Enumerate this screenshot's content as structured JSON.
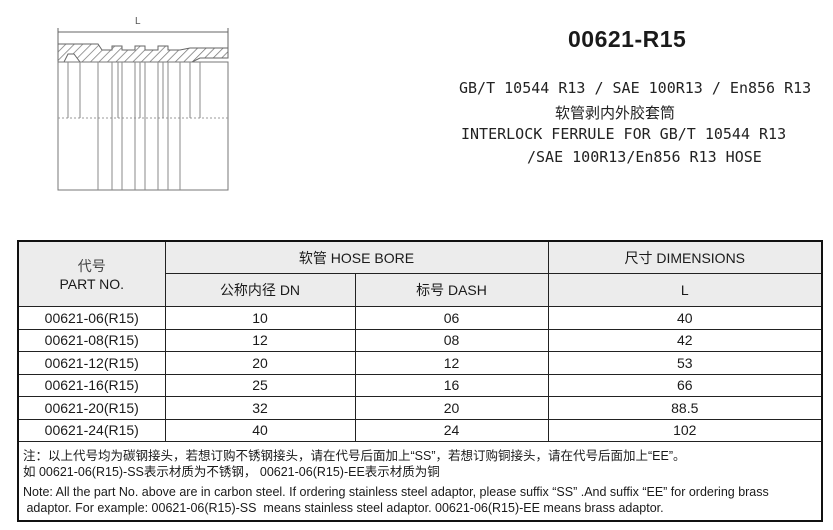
{
  "drawing": {
    "dimension_label": "L"
  },
  "header": {
    "title": "00621-R15",
    "standards": "GB/T 10544 R13 / SAE 100R13 / En856 R13",
    "name_cn": "软管剥内外胶套筒",
    "name_en_line1": "INTERLOCK FERRULE FOR GB/T 10544 R13",
    "name_en_line2": "/SAE 100R13/En856 R13 HOSE"
  },
  "table": {
    "col_part_cn": "代号",
    "col_part_en": "PART NO.",
    "group_hose": "软管 HOSE BORE",
    "group_dim": "尺寸 DIMENSIONS",
    "col_dn": "公称内径 DN",
    "col_dash": "标号 DASH",
    "col_l": "L",
    "rows": [
      {
        "part": "00621-06(R15)",
        "dn": "10",
        "dash": "06",
        "l": "40"
      },
      {
        "part": "00621-08(R15)",
        "dn": "12",
        "dash": "08",
        "l": "42"
      },
      {
        "part": "00621-12(R15)",
        "dn": "20",
        "dash": "12",
        "l": "53"
      },
      {
        "part": "00621-16(R15)",
        "dn": "25",
        "dash": "16",
        "l": "66"
      },
      {
        "part": "00621-20(R15)",
        "dn": "32",
        "dash": "20",
        "l": "88.5"
      },
      {
        "part": "00621-24(R15)",
        "dn": "40",
        "dash": "24",
        "l": "102"
      }
    ],
    "notes": [
      "注：以上代号均为碳钢接头，若想订购不锈钢接头，请在代号后面加上“SS”，若想订购铜接头，请在代号后面加上“EE”。",
      "如 00621-06(R15)-SS表示材质为不锈钢， 00621-06(R15)-EE表示材质为铜",
      "Note:  All the part No. above are in carbon steel. If ordering stainless steel adaptor, please suffix “SS” .And suffix “EE” for ordering brass",
      " adaptor. For example: 00621-06(R15)-SS  means stainless steel adaptor. 00621-06(R15)-EE means brass adaptor."
    ]
  }
}
